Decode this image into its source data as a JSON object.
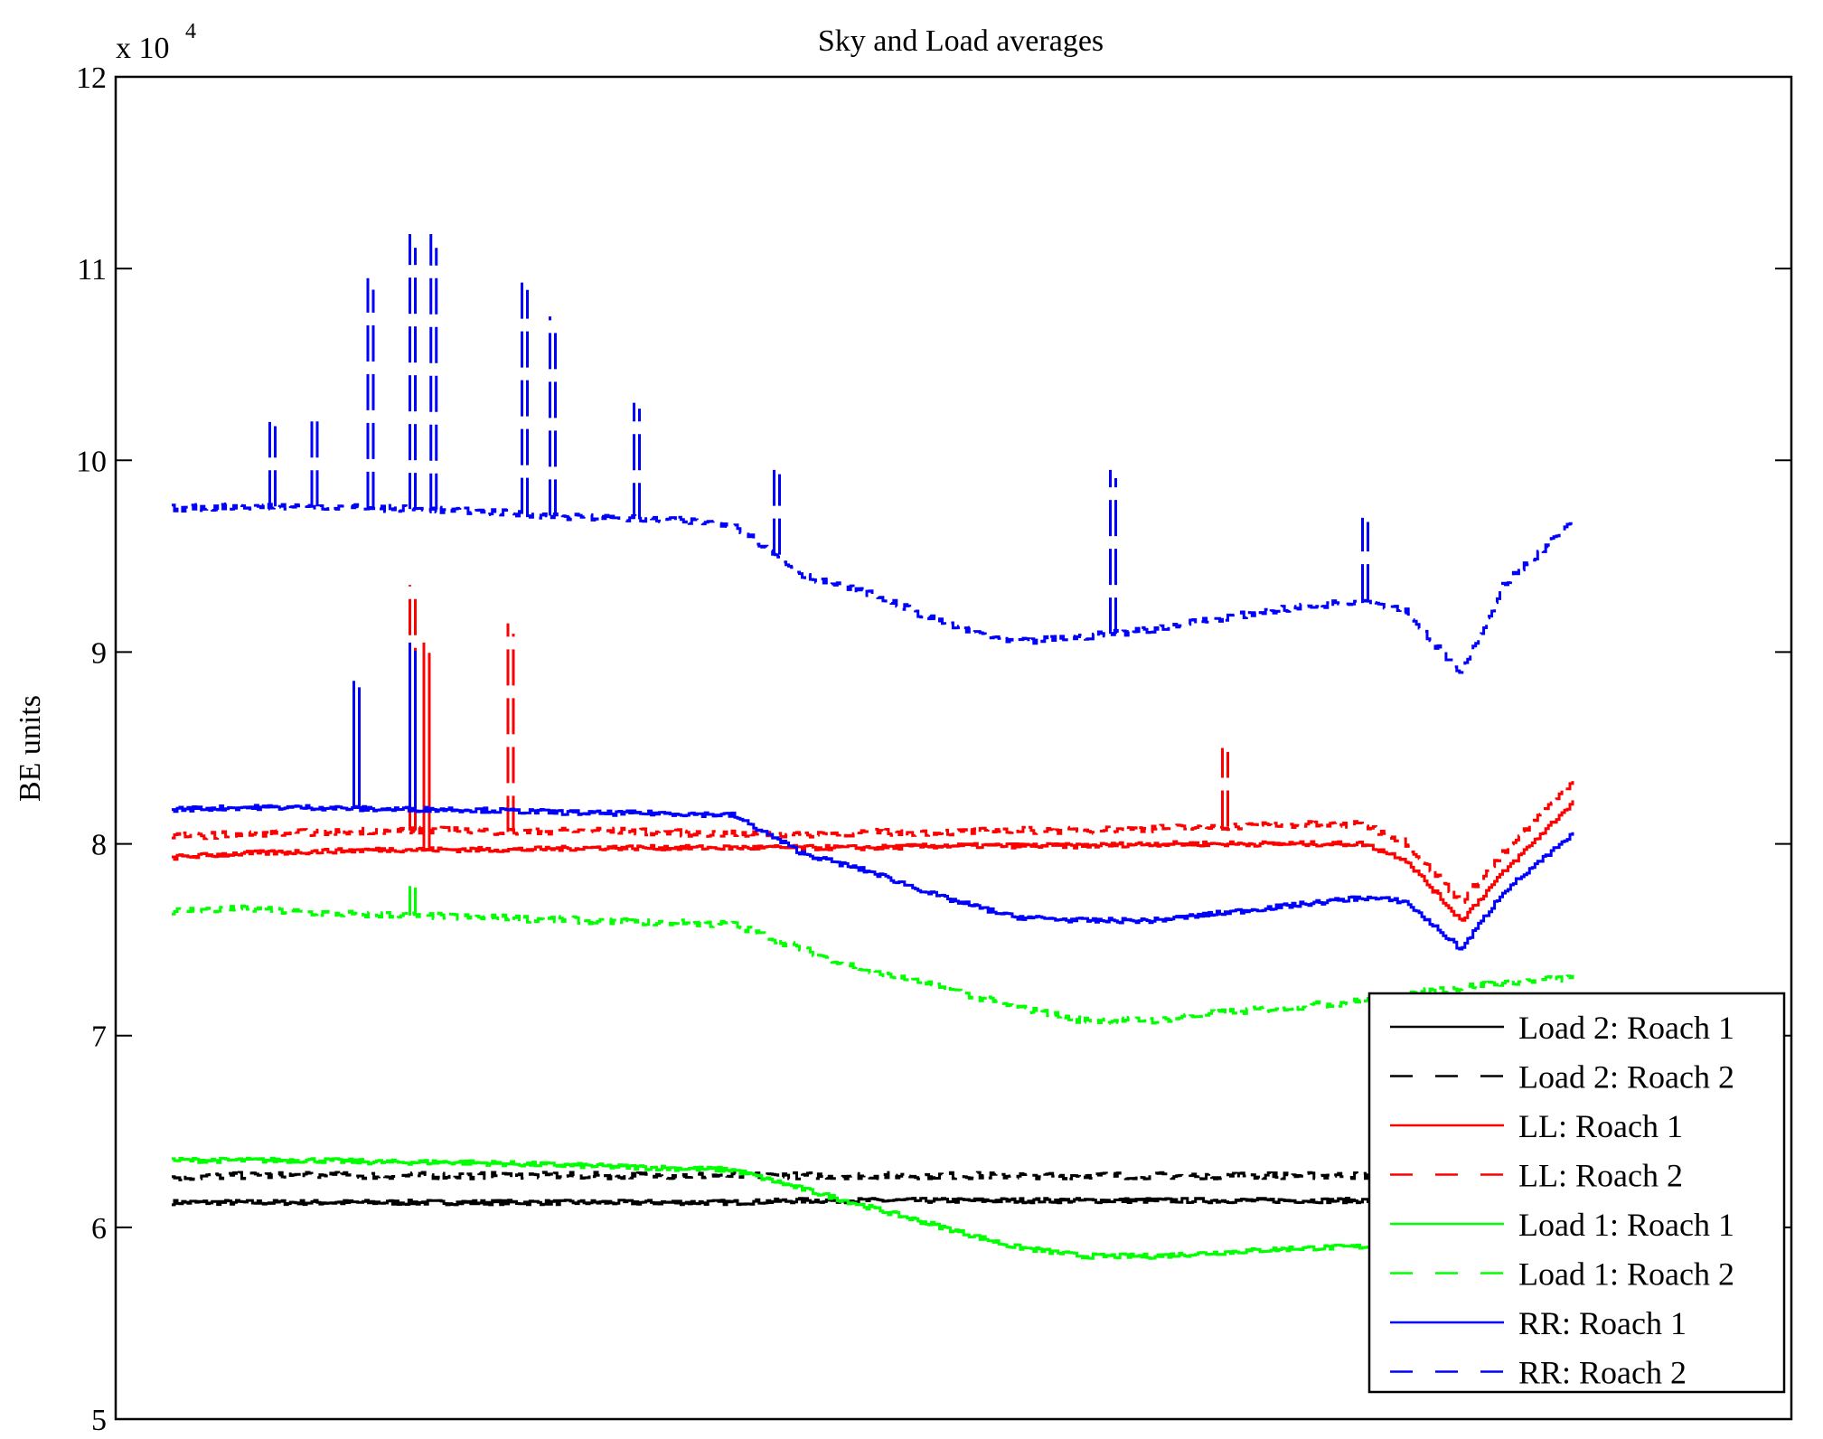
{
  "chart_data": {
    "type": "line",
    "title": "Sky and Load averages",
    "xlabel": "",
    "ylabel": "BE units",
    "y_multiplier_label": "x 10",
    "y_multiplier_exponent": "4",
    "ylim": [
      5,
      12
    ],
    "xlim": [
      0,
      100
    ],
    "yticks": [
      5,
      6,
      7,
      8,
      9,
      10,
      11,
      12
    ],
    "ytick_labels": [
      "5",
      "6",
      "7",
      "8",
      "9",
      "10",
      "11",
      "12"
    ],
    "grid": false,
    "legend_position": "bottom-right",
    "x": [
      0,
      5,
      10,
      15,
      20,
      25,
      30,
      35,
      40,
      45,
      50,
      55,
      60,
      65,
      70,
      75,
      80,
      85,
      88,
      92,
      95,
      100
    ],
    "series": [
      {
        "name": "Load 2: Roach 1",
        "color": "#000000",
        "dash": "solid",
        "values": [
          6.13,
          6.13,
          6.13,
          6.13,
          6.13,
          6.13,
          6.13,
          6.13,
          6.13,
          6.14,
          6.14,
          6.14,
          6.14,
          6.14,
          6.14,
          6.14,
          6.14,
          6.14,
          6.14,
          6.14,
          6.14,
          6.14
        ]
      },
      {
        "name": "Load 2: Roach 2",
        "color": "#000000",
        "dash": "dashed",
        "values": [
          6.26,
          6.27,
          6.27,
          6.27,
          6.27,
          6.27,
          6.27,
          6.27,
          6.27,
          6.27,
          6.27,
          6.27,
          6.27,
          6.27,
          6.27,
          6.27,
          6.27,
          6.27,
          6.27,
          6.27,
          6.27,
          6.27
        ]
      },
      {
        "name": "LL: Roach 1",
        "color": "#ff0000",
        "dash": "solid",
        "values": [
          7.93,
          7.95,
          7.96,
          7.97,
          7.97,
          7.97,
          7.98,
          7.98,
          7.98,
          7.98,
          7.98,
          7.99,
          7.99,
          7.99,
          8.0,
          8.0,
          8.0,
          8.0,
          7.92,
          7.6,
          7.85,
          8.22
        ]
      },
      {
        "name": "LL: Roach 2",
        "color": "#ff0000",
        "dash": "dashed",
        "values": [
          8.04,
          8.05,
          8.06,
          8.07,
          8.07,
          8.06,
          8.07,
          8.06,
          8.05,
          8.05,
          8.06,
          8.06,
          8.07,
          8.07,
          8.08,
          8.09,
          8.1,
          8.1,
          8.01,
          7.7,
          7.95,
          8.33
        ]
      },
      {
        "name": "Load 1: Roach 1",
        "color": "#00ff00",
        "dash": "solid",
        "values": [
          6.35,
          6.35,
          6.35,
          6.34,
          6.34,
          6.33,
          6.32,
          6.31,
          6.3,
          6.2,
          6.1,
          6.0,
          5.9,
          5.85,
          5.85,
          5.87,
          5.89,
          5.9,
          5.91,
          5.92,
          5.93,
          5.93
        ]
      },
      {
        "name": "Load 1: Roach 2",
        "color": "#00ff00",
        "dash": "dashed",
        "values": [
          7.65,
          7.66,
          7.64,
          7.63,
          7.62,
          7.61,
          7.6,
          7.59,
          7.58,
          7.45,
          7.33,
          7.25,
          7.15,
          7.08,
          7.08,
          7.12,
          7.15,
          7.18,
          7.22,
          7.25,
          7.28,
          7.3
        ]
      },
      {
        "name": "RR: Roach 1",
        "color": "#0000ff",
        "dash": "solid",
        "values": [
          8.18,
          8.19,
          8.19,
          8.18,
          8.18,
          8.17,
          8.16,
          8.16,
          8.15,
          7.95,
          7.85,
          7.72,
          7.62,
          7.6,
          7.6,
          7.64,
          7.68,
          7.72,
          7.7,
          7.45,
          7.75,
          8.05
        ]
      },
      {
        "name": "RR: Roach 2",
        "color": "#0000ff",
        "dash": "dashed",
        "values": [
          9.75,
          9.76,
          9.76,
          9.75,
          9.74,
          9.72,
          9.7,
          9.69,
          9.67,
          9.4,
          9.3,
          9.15,
          9.05,
          9.08,
          9.12,
          9.18,
          9.23,
          9.27,
          9.22,
          8.88,
          9.35,
          9.68
        ]
      }
    ],
    "spikes": [
      {
        "series": "RR: Roach 2",
        "x": 7,
        "peak": 10.2
      },
      {
        "series": "RR: Roach 2",
        "x": 10,
        "peak": 10.25
      },
      {
        "series": "RR: Roach 2",
        "x": 14,
        "peak": 10.95
      },
      {
        "series": "RR: Roach 2",
        "x": 17,
        "peak": 11.18
      },
      {
        "series": "RR: Roach 2",
        "x": 18.5,
        "peak": 11.18
      },
      {
        "series": "RR: Roach 2",
        "x": 25,
        "peak": 10.95
      },
      {
        "series": "RR: Roach 2",
        "x": 27,
        "peak": 10.75
      },
      {
        "series": "RR: Roach 2",
        "x": 33,
        "peak": 10.3
      },
      {
        "series": "RR: Roach 2",
        "x": 43,
        "peak": 9.95
      },
      {
        "series": "RR: Roach 2",
        "x": 67,
        "peak": 9.95
      },
      {
        "series": "RR: Roach 2",
        "x": 85,
        "peak": 9.7
      },
      {
        "series": "LL: Roach 2",
        "x": 17,
        "peak": 9.35
      },
      {
        "series": "LL: Roach 2",
        "x": 24,
        "peak": 9.15
      },
      {
        "series": "LL: Roach 1",
        "x": 18,
        "peak": 9.05
      },
      {
        "series": "RR: Roach 1",
        "x": 17,
        "peak": 9.05
      },
      {
        "series": "RR: Roach 1",
        "x": 13,
        "peak": 8.85
      },
      {
        "series": "LL: Roach 2",
        "x": 75,
        "peak": 8.5
      },
      {
        "series": "Load 1: Roach 2",
        "x": 17,
        "peak": 7.78
      }
    ]
  },
  "legend": {
    "items": [
      {
        "label": "Load 2: Roach 1",
        "color": "#000000",
        "dash": "solid"
      },
      {
        "label": "Load 2: Roach 2",
        "color": "#000000",
        "dash": "dashed"
      },
      {
        "label": "LL: Roach 1",
        "color": "#ff0000",
        "dash": "solid"
      },
      {
        "label": "LL: Roach 2",
        "color": "#ff0000",
        "dash": "dashed"
      },
      {
        "label": "Load 1: Roach 1",
        "color": "#00ff00",
        "dash": "solid"
      },
      {
        "label": "Load 1: Roach 2",
        "color": "#00ff00",
        "dash": "dashed"
      },
      {
        "label": "RR: Roach 1",
        "color": "#0000ff",
        "dash": "solid"
      },
      {
        "label": "RR: Roach 2",
        "color": "#0000ff",
        "dash": "dashed"
      }
    ]
  }
}
